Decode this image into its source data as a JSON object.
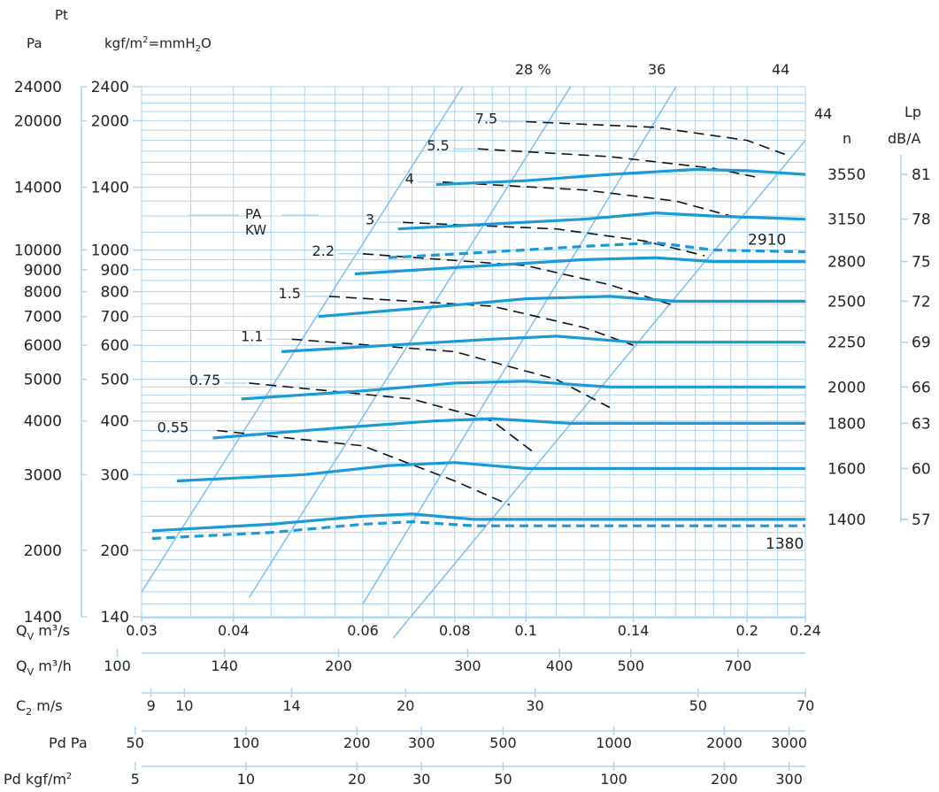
{
  "chart_data": {
    "type": "line",
    "title": "",
    "header": {
      "pt_label": "Pt",
      "pa_label": "Pa",
      "kgf_label_main": "kgf/m",
      "kgf_label_sup": "2",
      "kgf_label_eq": "=mmH",
      "kgf_label_sub": "2",
      "kgf_label_end": "O",
      "pakw_line1": "PA",
      "pakw_line2": "KW",
      "n_label": "n",
      "lp_label1": "Lp",
      "lp_label2": "dB/A"
    },
    "x_axis_scale": "log",
    "y_axis_scale": "log",
    "xlim": [
      0.03,
      0.24
    ],
    "ylim": [
      140,
      2400
    ],
    "y_ticks_kgf": [
      "2400",
      "2000",
      "1400",
      "1000",
      "900",
      "800",
      "700",
      "600",
      "500",
      "400",
      "300",
      "200",
      "140"
    ],
    "y_ticks_pa": [
      "24000",
      "20000",
      "14000",
      "10000",
      "9000",
      "8000",
      "7000",
      "6000",
      "5000",
      "4000",
      "3000",
      "2000",
      "1400"
    ],
    "x_scales": [
      {
        "label": "Q",
        "sub": "V",
        "unit": " m³/s",
        "ticks": [
          {
            "v": 0.03,
            "t": "0.03"
          },
          {
            "v": 0.04,
            "t": "0.04"
          },
          {
            "v": 0.06,
            "t": "0.06"
          },
          {
            "v": 0.08,
            "t": "0.08"
          },
          {
            "v": 0.1,
            "t": "0.1"
          },
          {
            "v": 0.14,
            "t": "0.14"
          },
          {
            "v": 0.2,
            "t": "0.2"
          },
          {
            "v": 0.24,
            "t": "0.24"
          }
        ]
      },
      {
        "label": "Q",
        "sub": "V",
        "unit": " m³/h",
        "ticks": [
          {
            "v": 0.0278,
            "t": "100"
          },
          {
            "v": 0.0389,
            "t": "140"
          },
          {
            "v": 0.0556,
            "t": "200"
          },
          {
            "v": 0.0833,
            "t": "300"
          },
          {
            "v": 0.1111,
            "t": "400"
          },
          {
            "v": 0.1389,
            "t": "500"
          },
          {
            "v": 0.1944,
            "t": "700"
          }
        ]
      },
      {
        "label": "C",
        "sub": "2",
        "unit": " m/s",
        "ticks": [
          {
            "v": 0.0309,
            "t": "9"
          },
          {
            "v": 0.0343,
            "t": "10"
          },
          {
            "v": 0.048,
            "t": "14"
          },
          {
            "v": 0.0686,
            "t": "20"
          },
          {
            "v": 0.1029,
            "t": "30"
          },
          {
            "v": 0.1715,
            "t": "50"
          },
          {
            "v": 0.2401,
            "t": "70"
          }
        ]
      },
      {
        "label": "Pd Pa",
        "sub": "",
        "unit": "",
        "ticks": [
          {
            "v": 0.0294,
            "t": "50"
          },
          {
            "v": 0.0416,
            "t": "100"
          },
          {
            "v": 0.0589,
            "t": "200"
          },
          {
            "v": 0.0721,
            "t": "300"
          },
          {
            "v": 0.0931,
            "t": "500"
          },
          {
            "v": 0.1317,
            "t": "1000"
          },
          {
            "v": 0.1862,
            "t": "2000"
          },
          {
            "v": 0.2281,
            "t": "3000"
          }
        ]
      },
      {
        "label": "Pd kgf/m",
        "sup": "2",
        "sub": "",
        "unit": "",
        "ticks": [
          {
            "v": 0.0294,
            "t": "5"
          },
          {
            "v": 0.0416,
            "t": "10"
          },
          {
            "v": 0.0589,
            "t": "20"
          },
          {
            "v": 0.0721,
            "t": "30"
          },
          {
            "v": 0.0931,
            "t": "50"
          },
          {
            "v": 0.1317,
            "t": "100"
          },
          {
            "v": 0.1862,
            "t": "200"
          },
          {
            "v": 0.2281,
            "t": "300"
          }
        ]
      }
    ],
    "series": [
      {
        "name": "3550",
        "style": "solid",
        "lp": "81",
        "points": [
          [
            0.0755,
            1420
          ],
          [
            0.1,
            1450
          ],
          [
            0.13,
            1500
          ],
          [
            0.17,
            1540
          ],
          [
            0.2,
            1530
          ],
          [
            0.24,
            1500
          ]
        ]
      },
      {
        "name": "3150",
        "style": "solid",
        "lp": "78",
        "points": [
          [
            0.067,
            1120
          ],
          [
            0.09,
            1150
          ],
          [
            0.12,
            1180
          ],
          [
            0.15,
            1220
          ],
          [
            0.18,
            1200
          ],
          [
            0.24,
            1180
          ]
        ]
      },
      {
        "name": "2910",
        "style": "dashed",
        "lp": "",
        "points": [
          [
            0.065,
            960
          ],
          [
            0.09,
            990
          ],
          [
            0.12,
            1020
          ],
          [
            0.15,
            1040
          ],
          [
            0.18,
            1000
          ],
          [
            0.24,
            990
          ]
        ]
      },
      {
        "name": "2800",
        "style": "solid",
        "lp": "75",
        "points": [
          [
            0.0585,
            880
          ],
          [
            0.08,
            910
          ],
          [
            0.12,
            950
          ],
          [
            0.15,
            960
          ],
          [
            0.18,
            940
          ],
          [
            0.24,
            940
          ]
        ]
      },
      {
        "name": "2500",
        "style": "solid",
        "lp": "72",
        "points": [
          [
            0.0522,
            700
          ],
          [
            0.07,
            730
          ],
          [
            0.1,
            770
          ],
          [
            0.13,
            780
          ],
          [
            0.16,
            760
          ],
          [
            0.24,
            760
          ]
        ]
      },
      {
        "name": "2250",
        "style": "solid",
        "lp": "69",
        "points": [
          [
            0.0465,
            580
          ],
          [
            0.065,
            600
          ],
          [
            0.09,
            620
          ],
          [
            0.11,
            630
          ],
          [
            0.14,
            610
          ],
          [
            0.24,
            610
          ]
        ]
      },
      {
        "name": "2000",
        "style": "solid",
        "lp": "66",
        "points": [
          [
            0.041,
            450
          ],
          [
            0.06,
            470
          ],
          [
            0.08,
            490
          ],
          [
            0.1,
            495
          ],
          [
            0.13,
            480
          ],
          [
            0.24,
            480
          ]
        ]
      },
      {
        "name": "1800",
        "style": "solid",
        "lp": "63",
        "points": [
          [
            0.0375,
            365
          ],
          [
            0.055,
            385
          ],
          [
            0.075,
            400
          ],
          [
            0.09,
            405
          ],
          [
            0.115,
            395
          ],
          [
            0.24,
            395
          ]
        ]
      },
      {
        "name": "1600",
        "style": "solid",
        "lp": "60",
        "points": [
          [
            0.0335,
            290
          ],
          [
            0.05,
            300
          ],
          [
            0.065,
            315
          ],
          [
            0.08,
            320
          ],
          [
            0.1,
            310
          ],
          [
            0.24,
            310
          ]
        ]
      },
      {
        "name": "1400",
        "style": "solid",
        "lp": "57",
        "points": [
          [
            0.031,
            222
          ],
          [
            0.045,
            230
          ],
          [
            0.06,
            240
          ],
          [
            0.07,
            243
          ],
          [
            0.085,
            236
          ],
          [
            0.24,
            236
          ]
        ]
      },
      {
        "name": "1380",
        "style": "dashed",
        "lp": "",
        "points": [
          [
            0.031,
            213
          ],
          [
            0.045,
            220
          ],
          [
            0.06,
            230
          ],
          [
            0.07,
            233
          ],
          [
            0.085,
            228
          ],
          [
            0.24,
            228
          ]
        ]
      }
    ],
    "power_curves": [
      {
        "label": "0.55",
        "points": [
          [
            0.038,
            380
          ],
          [
            0.06,
            350
          ],
          [
            0.08,
            290
          ],
          [
            0.095,
            255
          ]
        ]
      },
      {
        "label": "0.75",
        "points": [
          [
            0.042,
            490
          ],
          [
            0.07,
            450
          ],
          [
            0.09,
            400
          ],
          [
            0.102,
            340
          ]
        ]
      },
      {
        "label": "1.1",
        "points": [
          [
            0.048,
            620
          ],
          [
            0.08,
            580
          ],
          [
            0.11,
            500
          ],
          [
            0.13,
            430
          ]
        ]
      },
      {
        "label": "1.5",
        "points": [
          [
            0.054,
            780
          ],
          [
            0.09,
            740
          ],
          [
            0.12,
            660
          ],
          [
            0.14,
            600
          ]
        ]
      },
      {
        "label": "2.2",
        "points": [
          [
            0.06,
            980
          ],
          [
            0.1,
            920
          ],
          [
            0.13,
            830
          ],
          [
            0.16,
            740
          ]
        ]
      },
      {
        "label": "3",
        "points": [
          [
            0.068,
            1160
          ],
          [
            0.11,
            1120
          ],
          [
            0.145,
            1050
          ],
          [
            0.175,
            970
          ]
        ]
      },
      {
        "label": "4",
        "points": [
          [
            0.077,
            1440
          ],
          [
            0.12,
            1380
          ],
          [
            0.16,
            1300
          ],
          [
            0.19,
            1200
          ]
        ]
      },
      {
        "label": "5.5",
        "points": [
          [
            0.086,
            1720
          ],
          [
            0.13,
            1650
          ],
          [
            0.18,
            1550
          ],
          [
            0.205,
            1480
          ]
        ]
      },
      {
        "label": "7.5",
        "points": [
          [
            0.1,
            1990
          ],
          [
            0.15,
            1930
          ],
          [
            0.2,
            1800
          ],
          [
            0.225,
            1670
          ]
        ]
      }
    ],
    "efficiency_lines": [
      {
        "label": "28 %",
        "points": [
          [
            0.03,
            160
          ],
          [
            0.082,
            2400
          ]
        ]
      },
      {
        "label": "36",
        "points": [
          [
            0.042,
            155
          ],
          [
            0.115,
            2400
          ]
        ]
      },
      {
        "label": "44",
        "points": [
          [
            0.06,
            150
          ],
          [
            0.16,
            2400
          ]
        ]
      },
      {
        "label": "44",
        "points": [
          [
            0.066,
            125
          ],
          [
            0.24,
            1800
          ]
        ]
      }
    ]
  }
}
